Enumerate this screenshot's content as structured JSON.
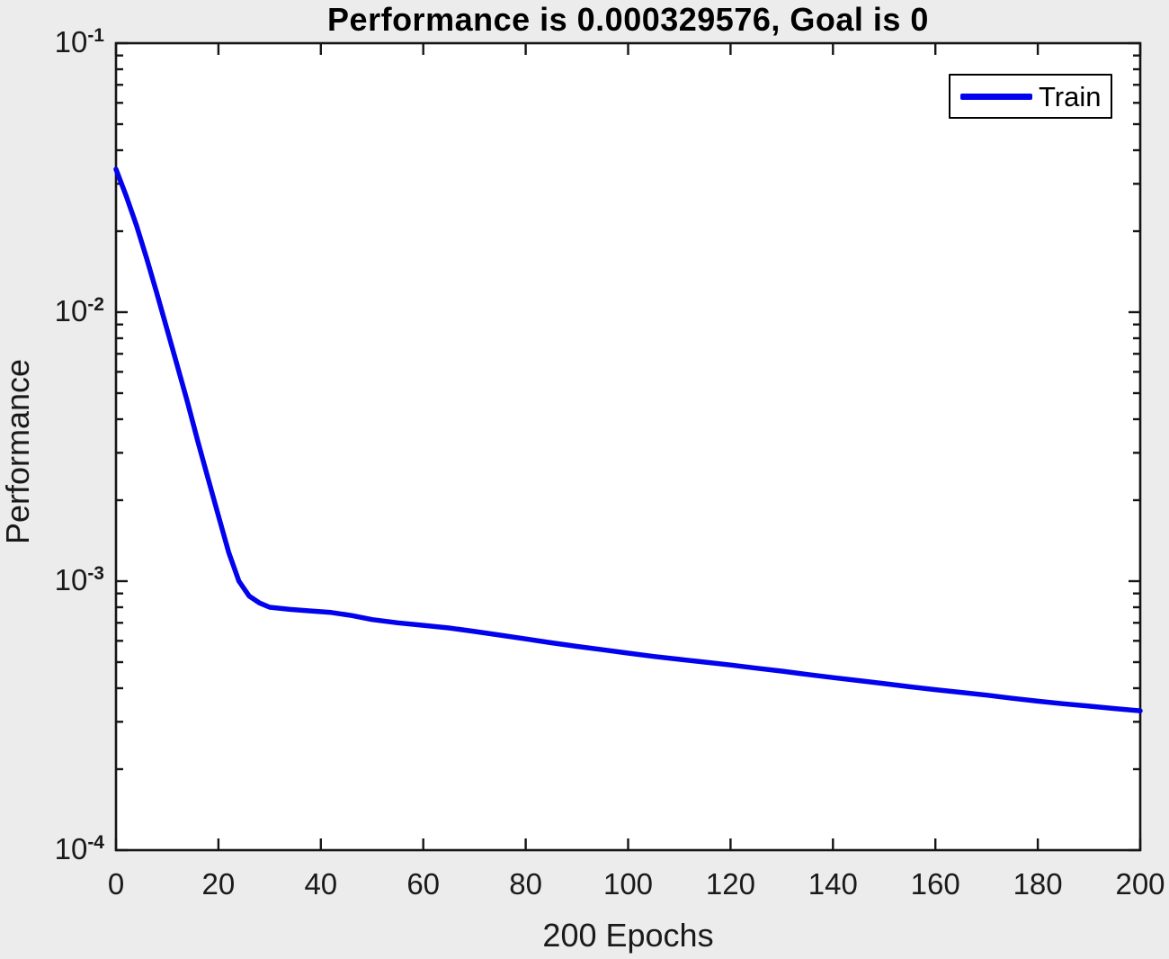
{
  "window": {
    "kind": "matlab-training-performance-plot"
  },
  "colors": {
    "figure_bg": "#ececec",
    "plot_bg": "#ffffff",
    "axis": "#151515",
    "text": "#1a1a1a",
    "train_line": "#0202ee"
  },
  "chart_data": {
    "type": "line",
    "title": "Performance is 0.000329576, Goal is 0",
    "xlabel": "200 Epochs",
    "ylabel": "Performance",
    "final_performance": 0.000329576,
    "goal": 0,
    "xlim": [
      0,
      200
    ],
    "ylim": [
      0.0001,
      0.1
    ],
    "y_scale": "log",
    "grid": false,
    "x_ticks": [
      0,
      20,
      40,
      60,
      80,
      100,
      120,
      140,
      160,
      180,
      200
    ],
    "y_tick_exponents": [
      -1,
      -2,
      -3,
      -4
    ],
    "legend": {
      "position": "top-right",
      "entries": [
        {
          "label": "Train",
          "color": "#0202ee"
        }
      ]
    },
    "series": [
      {
        "name": "Train",
        "color": "#0202ee",
        "points": [
          [
            0,
            0.034
          ],
          [
            2,
            0.027
          ],
          [
            4,
            0.021
          ],
          [
            6,
            0.0158
          ],
          [
            8,
            0.0117
          ],
          [
            10,
            0.0086
          ],
          [
            12,
            0.0063
          ],
          [
            14,
            0.0046
          ],
          [
            16,
            0.0033
          ],
          [
            18,
            0.0024
          ],
          [
            20,
            0.00175
          ],
          [
            22,
            0.00128
          ],
          [
            24,
            0.001
          ],
          [
            26,
            0.00088
          ],
          [
            28,
            0.00083
          ],
          [
            30,
            0.0008
          ],
          [
            34,
            0.000785
          ],
          [
            38,
            0.000775
          ],
          [
            42,
            0.000765
          ],
          [
            46,
            0.000745
          ],
          [
            50,
            0.00072
          ],
          [
            55,
            0.0007
          ],
          [
            60,
            0.000685
          ],
          [
            65,
            0.00067
          ],
          [
            70,
            0.00065
          ],
          [
            75,
            0.00063
          ],
          [
            80,
            0.00061
          ],
          [
            85,
            0.00059
          ],
          [
            90,
            0.000572
          ],
          [
            95,
            0.000556
          ],
          [
            100,
            0.00054
          ],
          [
            105,
            0.000525
          ],
          [
            110,
            0.000512
          ],
          [
            115,
            0.0005
          ],
          [
            120,
            0.000488
          ],
          [
            125,
            0.000475
          ],
          [
            130,
            0.000463
          ],
          [
            135,
            0.00045
          ],
          [
            140,
            0.000438
          ],
          [
            145,
            0.000427
          ],
          [
            150,
            0.000416
          ],
          [
            155,
            0.000405
          ],
          [
            160,
            0.000395
          ],
          [
            165,
            0.000386
          ],
          [
            170,
            0.000377
          ],
          [
            175,
            0.000367
          ],
          [
            180,
            0.000358
          ],
          [
            185,
            0.00035
          ],
          [
            190,
            0.000343
          ],
          [
            195,
            0.000336
          ],
          [
            200,
            0.000329576
          ]
        ]
      }
    ]
  }
}
